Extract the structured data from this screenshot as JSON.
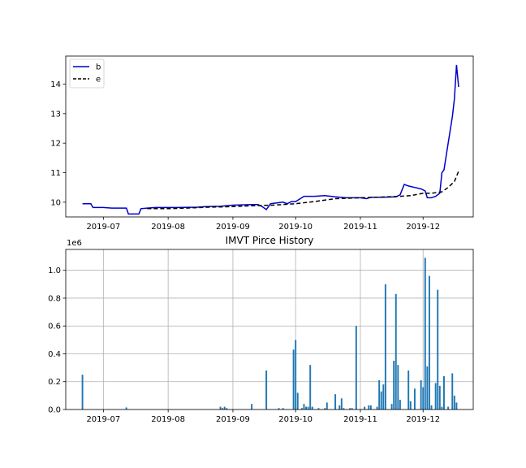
{
  "chart_data": [
    {
      "type": "line",
      "title": "",
      "xlabel": "",
      "ylabel": "",
      "x_ticks": [
        "2019-07",
        "2019-08",
        "2019-09",
        "2019-10",
        "2019-11",
        "2019-12"
      ],
      "x_tick_dates": [
        "2019-07-01",
        "2019-08-01",
        "2019-09-01",
        "2019-10-01",
        "2019-11-01",
        "2019-12-01"
      ],
      "xlim": [
        "2019-06-13",
        "2019-12-25"
      ],
      "ylim": [
        9.5,
        14.95
      ],
      "y_ticks": [
        10,
        11,
        12,
        13,
        14
      ],
      "grid": false,
      "legend": "upper-left",
      "series": [
        {
          "name": "b",
          "color": "#0000cc",
          "style": "solid",
          "points": [
            [
              "2019-06-21",
              9.95
            ],
            [
              "2019-06-25",
              9.95
            ],
            [
              "2019-06-26",
              9.82
            ],
            [
              "2019-07-01",
              9.82
            ],
            [
              "2019-07-05",
              9.8
            ],
            [
              "2019-07-12",
              9.8
            ],
            [
              "2019-07-13",
              9.6
            ],
            [
              "2019-07-18",
              9.6
            ],
            [
              "2019-07-19",
              9.78
            ],
            [
              "2019-07-22",
              9.8
            ],
            [
              "2019-07-26",
              9.82
            ],
            [
              "2019-08-05",
              9.82
            ],
            [
              "2019-08-15",
              9.83
            ],
            [
              "2019-08-19",
              9.85
            ],
            [
              "2019-08-26",
              9.86
            ],
            [
              "2019-09-01",
              9.9
            ],
            [
              "2019-09-10",
              9.92
            ],
            [
              "2019-09-13",
              9.92
            ],
            [
              "2019-09-15",
              9.85
            ],
            [
              "2019-09-17",
              9.75
            ],
            [
              "2019-09-19",
              9.95
            ],
            [
              "2019-09-25",
              10.0
            ],
            [
              "2019-09-27",
              9.95
            ],
            [
              "2019-09-29",
              10.02
            ],
            [
              "2019-10-01",
              10.02
            ],
            [
              "2019-10-05",
              10.2
            ],
            [
              "2019-10-10",
              10.2
            ],
            [
              "2019-10-15",
              10.22
            ],
            [
              "2019-10-20",
              10.18
            ],
            [
              "2019-10-25",
              10.15
            ],
            [
              "2019-11-01",
              10.15
            ],
            [
              "2019-11-04",
              10.12
            ],
            [
              "2019-11-06",
              10.17
            ],
            [
              "2019-11-12",
              10.17
            ],
            [
              "2019-11-18",
              10.18
            ],
            [
              "2019-11-20",
              10.25
            ],
            [
              "2019-11-22",
              10.6
            ],
            [
              "2019-11-24",
              10.55
            ],
            [
              "2019-11-27",
              10.5
            ],
            [
              "2019-11-30",
              10.45
            ],
            [
              "2019-12-02",
              10.38
            ],
            [
              "2019-12-03",
              10.15
            ],
            [
              "2019-12-05",
              10.15
            ],
            [
              "2019-12-07",
              10.2
            ],
            [
              "2019-12-09",
              10.3
            ],
            [
              "2019-12-10",
              11.0
            ],
            [
              "2019-12-11",
              11.1
            ],
            [
              "2019-12-13",
              12.0
            ],
            [
              "2019-12-15",
              12.9
            ],
            [
              "2019-12-16",
              13.5
            ],
            [
              "2019-12-17",
              14.65
            ],
            [
              "2019-12-18",
              13.9
            ]
          ]
        },
        {
          "name": "e",
          "color": "#000000",
          "style": "dashed",
          "points": [
            [
              "2019-07-22",
              9.78
            ],
            [
              "2019-08-01",
              9.78
            ],
            [
              "2019-08-10",
              9.8
            ],
            [
              "2019-08-20",
              9.83
            ],
            [
              "2019-09-01",
              9.85
            ],
            [
              "2019-09-10",
              9.88
            ],
            [
              "2019-09-20",
              9.9
            ],
            [
              "2019-10-01",
              9.95
            ],
            [
              "2019-10-10",
              10.02
            ],
            [
              "2019-10-20",
              10.12
            ],
            [
              "2019-11-01",
              10.15
            ],
            [
              "2019-11-10",
              10.17
            ],
            [
              "2019-11-20",
              10.2
            ],
            [
              "2019-11-25",
              10.22
            ],
            [
              "2019-12-01",
              10.3
            ],
            [
              "2019-12-05",
              10.3
            ],
            [
              "2019-12-10",
              10.35
            ],
            [
              "2019-12-13",
              10.5
            ],
            [
              "2019-12-16",
              10.7
            ],
            [
              "2019-12-18",
              11.05
            ]
          ]
        }
      ]
    },
    {
      "type": "bar",
      "title": "IMVT Pirce History",
      "xlabel": "",
      "ylabel": "",
      "y_offset_label": "1e6",
      "x_ticks": [
        "2019-07",
        "2019-08",
        "2019-09",
        "2019-10",
        "2019-11",
        "2019-12"
      ],
      "x_tick_dates": [
        "2019-07-01",
        "2019-08-01",
        "2019-09-01",
        "2019-10-01",
        "2019-11-01",
        "2019-12-01"
      ],
      "xlim": [
        "2019-06-13",
        "2019-12-25"
      ],
      "ylim": [
        0,
        1.15
      ],
      "y_ticks": [
        "0.0",
        "0.2",
        "0.4",
        "0.6",
        "0.8",
        "1.0"
      ],
      "grid": true,
      "bar_color": "#1f77b4",
      "values_unit": "millions",
      "bars": [
        [
          "2019-06-21",
          0.25
        ],
        [
          "2019-07-12",
          0.015
        ],
        [
          "2019-08-26",
          0.02
        ],
        [
          "2019-08-27",
          0.01
        ],
        [
          "2019-08-28",
          0.02
        ],
        [
          "2019-08-29",
          0.01
        ],
        [
          "2019-09-10",
          0.04
        ],
        [
          "2019-09-17",
          0.28
        ],
        [
          "2019-09-23",
          0.01
        ],
        [
          "2019-09-25",
          0.01
        ],
        [
          "2019-09-30",
          0.43
        ],
        [
          "2019-10-01",
          0.5
        ],
        [
          "2019-10-02",
          0.12
        ],
        [
          "2019-10-04",
          0.01
        ],
        [
          "2019-10-05",
          0.04
        ],
        [
          "2019-10-06",
          0.02
        ],
        [
          "2019-10-07",
          0.02
        ],
        [
          "2019-10-08",
          0.32
        ],
        [
          "2019-10-09",
          0.02
        ],
        [
          "2019-10-12",
          0.01
        ],
        [
          "2019-10-15",
          0.01
        ],
        [
          "2019-10-16",
          0.05
        ],
        [
          "2019-10-20",
          0.11
        ],
        [
          "2019-10-22",
          0.03
        ],
        [
          "2019-10-23",
          0.08
        ],
        [
          "2019-10-24",
          0.01
        ],
        [
          "2019-10-27",
          0.01
        ],
        [
          "2019-10-28",
          0.01
        ],
        [
          "2019-10-30",
          0.6
        ],
        [
          "2019-11-03",
          0.02
        ],
        [
          "2019-11-05",
          0.03
        ],
        [
          "2019-11-06",
          0.03
        ],
        [
          "2019-11-09",
          0.02
        ],
        [
          "2019-11-10",
          0.21
        ],
        [
          "2019-11-11",
          0.13
        ],
        [
          "2019-11-12",
          0.18
        ],
        [
          "2019-11-13",
          0.9
        ],
        [
          "2019-11-16",
          0.04
        ],
        [
          "2019-11-17",
          0.35
        ],
        [
          "2019-11-18",
          0.83
        ],
        [
          "2019-11-19",
          0.32
        ],
        [
          "2019-11-20",
          0.07
        ],
        [
          "2019-11-24",
          0.28
        ],
        [
          "2019-11-25",
          0.06
        ],
        [
          "2019-11-27",
          0.15
        ],
        [
          "2019-11-30",
          0.21
        ],
        [
          "2019-12-01",
          0.16
        ],
        [
          "2019-12-02",
          1.09
        ],
        [
          "2019-12-03",
          0.31
        ],
        [
          "2019-12-04",
          0.96
        ],
        [
          "2019-12-05",
          0.03
        ],
        [
          "2019-12-07",
          0.19
        ],
        [
          "2019-12-08",
          0.86
        ],
        [
          "2019-12-09",
          0.17
        ],
        [
          "2019-12-10",
          0.02
        ],
        [
          "2019-12-11",
          0.24
        ],
        [
          "2019-12-13",
          0.02
        ],
        [
          "2019-12-15",
          0.26
        ],
        [
          "2019-12-16",
          0.1
        ],
        [
          "2019-12-17",
          0.05
        ]
      ]
    }
  ]
}
